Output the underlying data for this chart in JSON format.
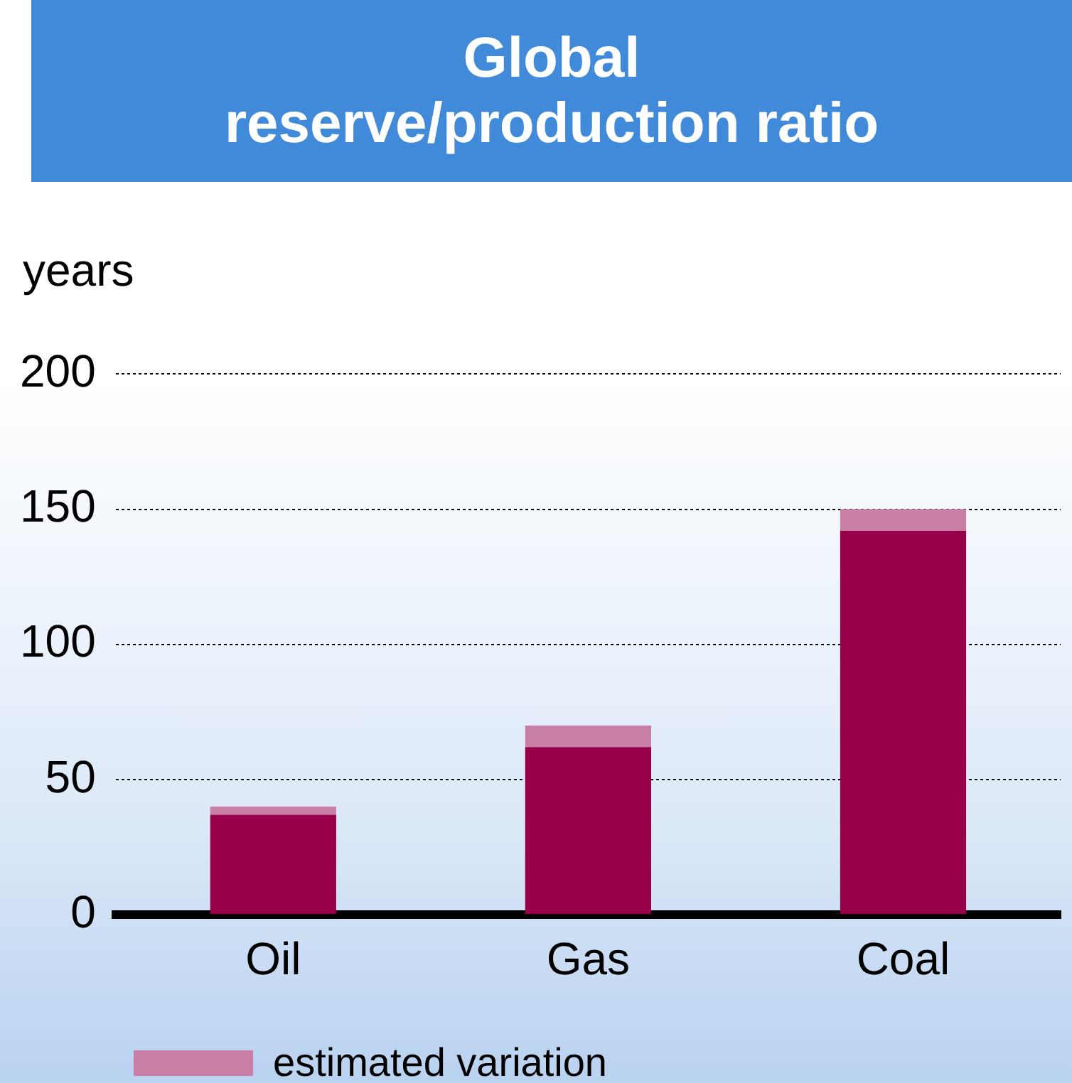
{
  "chart_data": {
    "type": "bar",
    "title": "Global\nreserve/production ratio",
    "ylabel": "years",
    "categories": [
      "Oil",
      "Gas",
      "Coal"
    ],
    "stacked": true,
    "series": [
      {
        "color": "#970048",
        "values": [
          37,
          62,
          142
        ]
      },
      {
        "name": "estimated variation",
        "color": "#c97fa3",
        "values": [
          3,
          8,
          8
        ]
      }
    ],
    "ylim": [
      0,
      200
    ],
    "yticks": [
      0,
      50,
      100,
      150,
      200
    ],
    "grid": "y",
    "legend": "bottom"
  }
}
